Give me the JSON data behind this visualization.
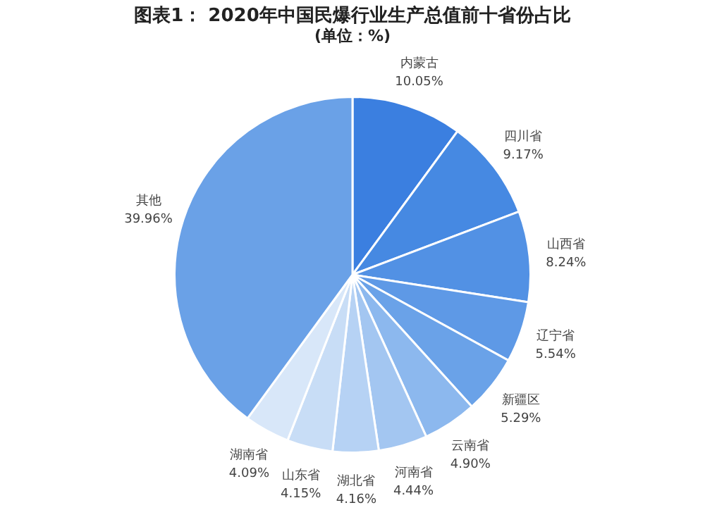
{
  "chart_data": {
    "type": "pie",
    "title": "图表1： 2020年中国民爆行业生产总值前十省份占比",
    "subtitle": "(单位：%)",
    "categories": [
      "内蒙古",
      "四川省",
      "山西省",
      "辽宁省",
      "新疆区",
      "云南省",
      "河南省",
      "湖北省",
      "山东省",
      "湖南省",
      "其他"
    ],
    "values": [
      10.05,
      9.17,
      8.24,
      5.54,
      5.29,
      4.9,
      4.44,
      4.16,
      4.15,
      4.09,
      39.96
    ],
    "value_labels": [
      "10.05%",
      "9.17%",
      "8.24%",
      "5.54%",
      "5.29%",
      "4.90%",
      "4.44%",
      "4.16%",
      "4.15%",
      "4.09%",
      "39.96%"
    ],
    "colors": [
      "#3b7fe0",
      "#4689e2",
      "#5291e4",
      "#5e99e6",
      "#6aa2e8",
      "#8cb8ee",
      "#a3c6f1",
      "#b6d2f4",
      "#c8ddf6",
      "#d8e7f9",
      "#6aa1e7"
    ],
    "legend": false
  }
}
